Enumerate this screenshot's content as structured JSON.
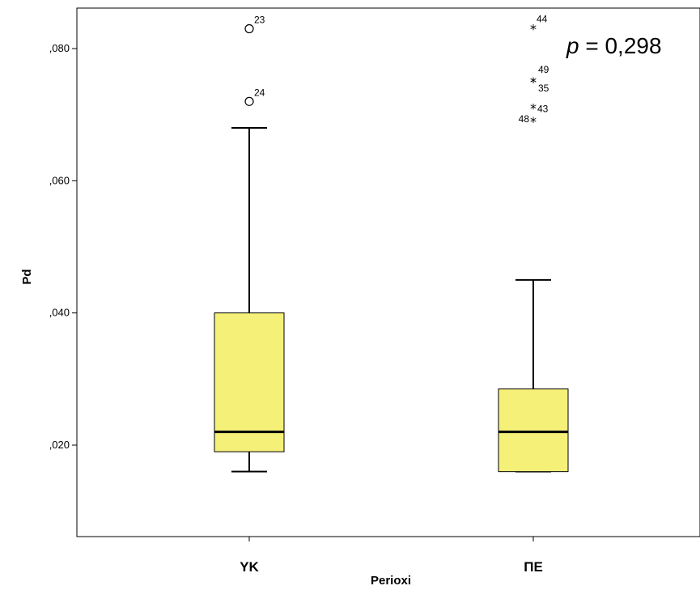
{
  "chart_data": {
    "type": "box",
    "xlabel": "Perioxi",
    "ylabel": "Pd",
    "ylim": [
      0.008,
      0.09
    ],
    "yticks": [
      0.02,
      0.04,
      0.06,
      0.08
    ],
    "ytick_labels": [
      ",020",
      ",040",
      ",060",
      ",080"
    ],
    "categories": [
      "YK",
      "ΠΕ"
    ],
    "colors": {
      "box_fill": "#f5f078",
      "line": "#000000"
    },
    "boxes": [
      {
        "name": "YK",
        "whisker_low": 0.016,
        "q1": 0.019,
        "median": 0.022,
        "q3": 0.04,
        "whisker_high": 0.068,
        "outliers": [
          {
            "label": "23",
            "value": 0.083,
            "marker": "circle"
          },
          {
            "label": "24",
            "value": 0.072,
            "marker": "circle"
          }
        ]
      },
      {
        "name": "ΠΕ",
        "whisker_low": 0.016,
        "q1": 0.016,
        "median": 0.022,
        "q3": 0.0285,
        "whisker_high": 0.045,
        "outliers": [
          {
            "label": "44",
            "value": 0.083,
            "marker": "star"
          },
          {
            "label": "49",
            "value": 0.075,
            "marker": "star"
          },
          {
            "label": "35",
            "value": 0.075,
            "marker": "star"
          },
          {
            "label": "43",
            "value": 0.071,
            "marker": "star"
          },
          {
            "label": "48",
            "value": 0.069,
            "marker": "star"
          }
        ]
      }
    ],
    "annotation": {
      "italic": "p",
      "text": " = 0,298"
    }
  }
}
